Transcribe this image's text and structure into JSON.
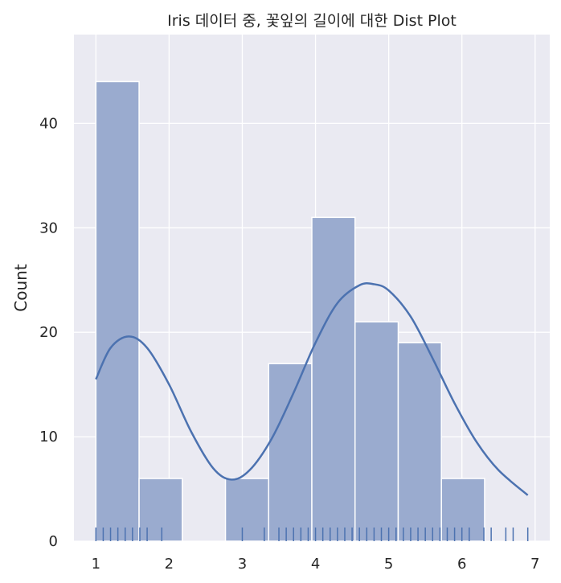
{
  "chart_data": {
    "type": "bar",
    "title": "Iris 데이터 중, 꽃잎의 길이에 대한 Dist Plot",
    "xlabel": "",
    "ylabel": "Count",
    "xlim": [
      0.7,
      7.2
    ],
    "ylim": [
      0,
      48.5
    ],
    "xticks": [
      1,
      2,
      3,
      4,
      5,
      6,
      7
    ],
    "yticks": [
      0,
      10,
      20,
      30,
      40
    ],
    "grid": true,
    "bin_edges": [
      1.0,
      1.59,
      2.18,
      2.77,
      3.36,
      3.95,
      4.54,
      5.13,
      5.72,
      6.31,
      6.9
    ],
    "values": [
      44,
      6,
      0,
      6,
      17,
      31,
      21,
      19,
      6,
      0
    ],
    "kde": {
      "x": [
        1.0,
        1.2,
        1.45,
        1.7,
        2.0,
        2.3,
        2.6,
        2.85,
        3.1,
        3.4,
        3.7,
        4.0,
        4.3,
        4.6,
        4.8,
        5.0,
        5.3,
        5.6,
        5.9,
        6.2,
        6.5,
        6.9
      ],
      "y": [
        15.5,
        18.5,
        19.6,
        18.5,
        15.0,
        10.5,
        7.0,
        5.9,
        6.8,
        9.8,
        14.2,
        19.0,
        22.8,
        24.5,
        24.6,
        24.0,
        21.5,
        17.5,
        13.2,
        9.5,
        6.8,
        4.4
      ]
    },
    "rug": [
      1.0,
      1.1,
      1.2,
      1.3,
      1.4,
      1.5,
      1.6,
      1.7,
      1.9,
      3.0,
      3.3,
      3.5,
      3.6,
      3.7,
      3.8,
      3.9,
      4.0,
      4.1,
      4.2,
      4.3,
      4.4,
      4.5,
      4.6,
      4.7,
      4.8,
      4.9,
      5.0,
      5.1,
      5.2,
      5.3,
      5.4,
      5.5,
      5.6,
      5.7,
      5.8,
      5.9,
      6.0,
      6.1,
      6.3,
      6.4,
      6.6,
      6.7,
      6.9
    ],
    "colors": {
      "background": "#eaeaf2",
      "grid": "#ffffff",
      "bar_fill": "#9aabcf",
      "bar_edge": "#ffffff",
      "line": "#4c72b0",
      "rug": "#4c72b0"
    }
  }
}
